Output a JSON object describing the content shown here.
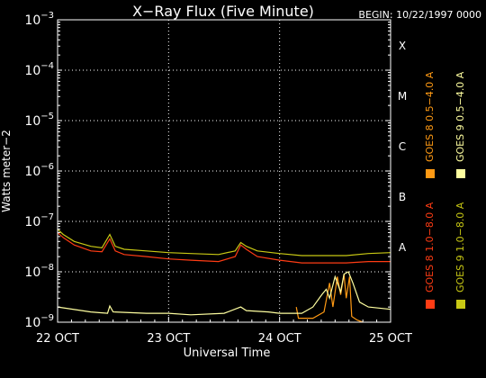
{
  "chart_data": {
    "type": "line",
    "title": "X−Ray Flux (Five Minute)",
    "begin_label": "BEGIN: 10/22/1997 0000",
    "xlabel": "Universal Time",
    "ylabel": "Watts meter−2",
    "x_ticks": [
      "22 OCT",
      "23 OCT",
      "24 OCT",
      "25 OCT"
    ],
    "x_range_days": [
      0,
      3
    ],
    "y_scale": "log",
    "ylim": [
      1e-09,
      0.001
    ],
    "y_tick_mantissa": "10",
    "y_tick_exponents": [
      "−9",
      "−8",
      "−7",
      "−6",
      "−5",
      "−4",
      "−3"
    ],
    "flare_classes": [
      {
        "label": "A",
        "exponent": -8
      },
      {
        "label": "B",
        "exponent": -7
      },
      {
        "label": "C",
        "exponent": -6
      },
      {
        "label": "M",
        "exponent": -5
      },
      {
        "label": "X",
        "exponent": -4
      }
    ],
    "grid": true,
    "legend_position": "right-side, vertical",
    "series": [
      {
        "name": "GOES 8  1.0−8.0 A",
        "color": "#ff3c14",
        "points": [
          [
            0,
            6e-08
          ],
          [
            0.05,
            4.8e-08
          ],
          [
            0.15,
            3.4e-08
          ],
          [
            0.3,
            2.6e-08
          ],
          [
            0.4,
            2.5e-08
          ],
          [
            0.47,
            4.5e-08
          ],
          [
            0.52,
            2.6e-08
          ],
          [
            0.6,
            2.2e-08
          ],
          [
            0.8,
            2e-08
          ],
          [
            1.0,
            1.8e-08
          ],
          [
            1.2,
            1.7e-08
          ],
          [
            1.45,
            1.6e-08
          ],
          [
            1.6,
            2e-08
          ],
          [
            1.65,
            3.4e-08
          ],
          [
            1.7,
            2.8e-08
          ],
          [
            1.8,
            2e-08
          ],
          [
            2.0,
            1.7e-08
          ],
          [
            2.2,
            1.5e-08
          ],
          [
            2.4,
            1.5e-08
          ],
          [
            2.6,
            1.5e-08
          ],
          [
            2.8,
            1.6e-08
          ],
          [
            3.0,
            1.6e-08
          ]
        ]
      },
      {
        "name": "GOES 8  0.5−4.0 A",
        "color": "#ff9a14",
        "points": [
          [
            2.15,
            2e-09
          ],
          [
            2.17,
            1.2e-09
          ],
          [
            2.3,
            1.2e-09
          ],
          [
            2.4,
            1.6e-09
          ],
          [
            2.45,
            6e-09
          ],
          [
            2.48,
            2e-09
          ],
          [
            2.52,
            8e-09
          ],
          [
            2.55,
            3.5e-09
          ],
          [
            2.58,
            9e-09
          ],
          [
            2.6,
            3e-09
          ],
          [
            2.63,
            8e-09
          ],
          [
            2.65,
            1.3e-09
          ],
          [
            2.7,
            1.1e-09
          ],
          [
            2.75,
            1e-09
          ]
        ]
      },
      {
        "name": "GOES 9  1.0−8.0 A",
        "color": "#c8c814",
        "points": [
          [
            0,
            7e-08
          ],
          [
            0.05,
            5.5e-08
          ],
          [
            0.15,
            4e-08
          ],
          [
            0.3,
            3.2e-08
          ],
          [
            0.4,
            3e-08
          ],
          [
            0.47,
            5.5e-08
          ],
          [
            0.52,
            3.2e-08
          ],
          [
            0.6,
            2.8e-08
          ],
          [
            0.8,
            2.6e-08
          ],
          [
            1.0,
            2.4e-08
          ],
          [
            1.2,
            2.3e-08
          ],
          [
            1.45,
            2.2e-08
          ],
          [
            1.6,
            2.6e-08
          ],
          [
            1.65,
            3.8e-08
          ],
          [
            1.7,
            3.2e-08
          ],
          [
            1.8,
            2.6e-08
          ],
          [
            2.0,
            2.3e-08
          ],
          [
            2.2,
            2.1e-08
          ],
          [
            2.4,
            2.1e-08
          ],
          [
            2.6,
            2.1e-08
          ],
          [
            2.8,
            2.3e-08
          ],
          [
            3.0,
            2.4e-08
          ]
        ]
      },
      {
        "name": "GOES 9  0.5−4.0 A",
        "color": "#ffffa0",
        "points": [
          [
            0,
            2e-09
          ],
          [
            0.3,
            1.6e-09
          ],
          [
            0.45,
            1.5e-09
          ],
          [
            0.47,
            2.1e-09
          ],
          [
            0.5,
            1.6e-09
          ],
          [
            0.8,
            1.5e-09
          ],
          [
            1.0,
            1.5e-09
          ],
          [
            1.2,
            1.4e-09
          ],
          [
            1.5,
            1.5e-09
          ],
          [
            1.65,
            2e-09
          ],
          [
            1.7,
            1.7e-09
          ],
          [
            1.9,
            1.6e-09
          ],
          [
            2.0,
            1.5e-09
          ],
          [
            2.2,
            1.5e-09
          ],
          [
            2.3,
            2e-09
          ],
          [
            2.38,
            3.5e-09
          ],
          [
            2.42,
            4.5e-09
          ],
          [
            2.45,
            3e-09
          ],
          [
            2.5,
            8e-09
          ],
          [
            2.55,
            4e-09
          ],
          [
            2.58,
            9e-09
          ],
          [
            2.62,
            1e-08
          ],
          [
            2.66,
            6e-09
          ],
          [
            2.72,
            2.5e-09
          ],
          [
            2.8,
            2e-09
          ],
          [
            3.0,
            1.8e-09
          ]
        ]
      }
    ]
  }
}
